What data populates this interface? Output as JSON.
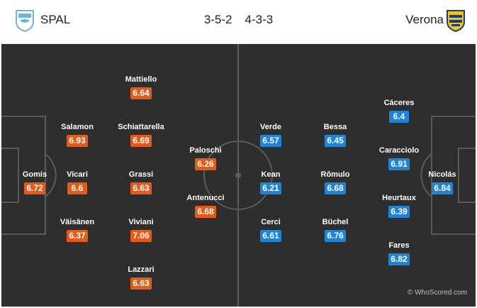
{
  "header": {
    "home_team": "SPAL",
    "away_team": "Verona",
    "home_formation": "3-5-2",
    "away_formation": "4-3-3"
  },
  "colors": {
    "home_rating_bg": "#e55a14",
    "away_rating_bg": "#1f84d6",
    "pitch": "#2e2e2e",
    "lines": "#5a5a5a"
  },
  "home_players": [
    {
      "name": "Gomis",
      "rating": "6.72"
    },
    {
      "name": "Salamon",
      "rating": "6.93"
    },
    {
      "name": "Vicari",
      "rating": "6.6"
    },
    {
      "name": "Väisänen",
      "rating": "6.37"
    },
    {
      "name": "Mattiello",
      "rating": "6.64"
    },
    {
      "name": "Schiattarella",
      "rating": "6.69"
    },
    {
      "name": "Grassi",
      "rating": "6.63"
    },
    {
      "name": "Viviani",
      "rating": "7.06"
    },
    {
      "name": "Lazzari",
      "rating": "6.63"
    },
    {
      "name": "Paloschi",
      "rating": "6.26"
    },
    {
      "name": "Antenucci",
      "rating": "6.68"
    }
  ],
  "away_players": [
    {
      "name": "Verde",
      "rating": "6.57"
    },
    {
      "name": "Kean",
      "rating": "6.21"
    },
    {
      "name": "Cerci",
      "rating": "6.61"
    },
    {
      "name": "Bessa",
      "rating": "6.45"
    },
    {
      "name": "Rômulo",
      "rating": "6.68"
    },
    {
      "name": "Büchel",
      "rating": "6.76"
    },
    {
      "name": "Cáceres",
      "rating": "6.4"
    },
    {
      "name": "Caracciolo",
      "rating": "6.91"
    },
    {
      "name": "Heurtaux",
      "rating": "6.39"
    },
    {
      "name": "Fares",
      "rating": "6.82"
    },
    {
      "name": "Nicolás",
      "rating": "6.84"
    }
  ],
  "watermark": "© WhoScored.com",
  "icons": {
    "home_crest": "spal-crest-icon",
    "away_crest": "verona-crest-icon"
  }
}
